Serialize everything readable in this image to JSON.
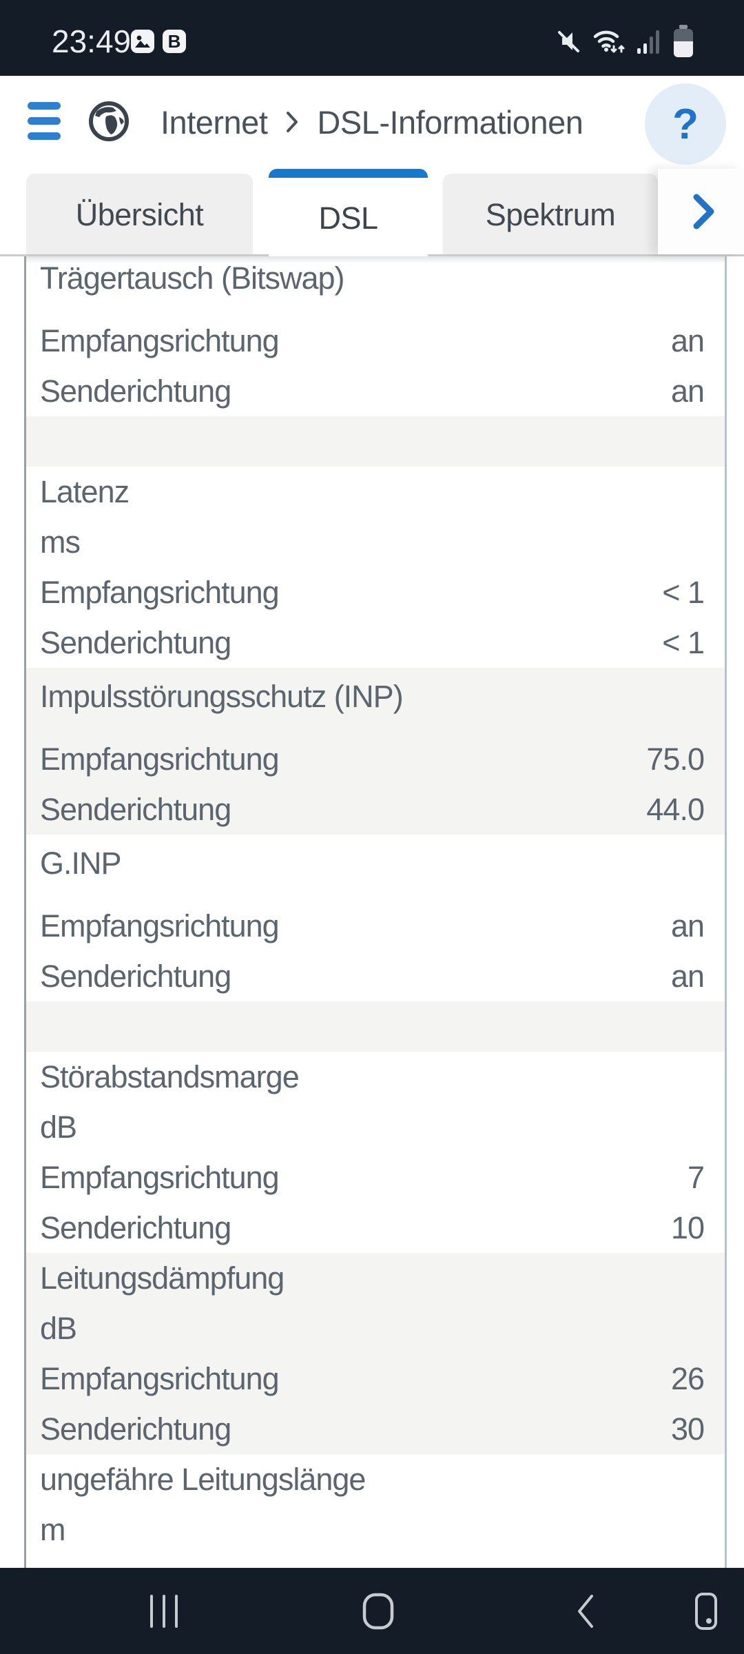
{
  "status_bar": {
    "time": "23:49",
    "badge_letter": "B",
    "icons": [
      "gallery-icon",
      "app-badge-icon",
      "mute-icon",
      "wifi-icon",
      "signal-icon",
      "battery-icon"
    ]
  },
  "header": {
    "breadcrumb": {
      "section": "Internet",
      "page": "DSL-Informationen"
    },
    "help_label": "?"
  },
  "tabs": {
    "items": [
      {
        "label": "Übersicht",
        "active": false
      },
      {
        "label": "DSL",
        "active": true
      },
      {
        "label": "Spektrum",
        "active": false
      }
    ]
  },
  "content": {
    "sections": [
      {
        "bg": "white",
        "rows": [
          {
            "type": "title-tall",
            "label": "Trägertausch (Bitswap)"
          },
          {
            "type": "row",
            "label": "Empfangsrichtung",
            "value": "an"
          },
          {
            "type": "row",
            "label": "Senderichtung",
            "value": "an"
          }
        ]
      },
      {
        "bg": "gray",
        "rows": [
          {
            "type": "spacer"
          }
        ]
      },
      {
        "bg": "white",
        "rows": [
          {
            "type": "title",
            "label": "Latenz"
          },
          {
            "type": "unit",
            "label": "ms"
          },
          {
            "type": "row",
            "label": "Empfangsrichtung",
            "value": "< 1"
          },
          {
            "type": "row",
            "label": "Senderichtung",
            "value": "< 1"
          }
        ]
      },
      {
        "bg": "gray",
        "rows": [
          {
            "type": "title-tall",
            "label": "Impulsstörungsschutz (INP)"
          },
          {
            "type": "row",
            "label": "Empfangsrichtung",
            "value": "75.0"
          },
          {
            "type": "row",
            "label": "Senderichtung",
            "value": "44.0"
          }
        ]
      },
      {
        "bg": "white",
        "rows": [
          {
            "type": "title-tall",
            "label": "G.INP"
          },
          {
            "type": "row",
            "label": "Empfangsrichtung",
            "value": "an"
          },
          {
            "type": "row",
            "label": "Senderichtung",
            "value": "an"
          }
        ]
      },
      {
        "bg": "gray",
        "rows": [
          {
            "type": "spacer"
          }
        ]
      },
      {
        "bg": "white",
        "rows": [
          {
            "type": "title",
            "label": "Störabstandsmarge"
          },
          {
            "type": "unit",
            "label": "dB"
          },
          {
            "type": "row",
            "label": "Empfangsrichtung",
            "value": "7"
          },
          {
            "type": "row",
            "label": "Senderichtung",
            "value": "10"
          }
        ]
      },
      {
        "bg": "gray",
        "rows": [
          {
            "type": "title",
            "label": "Leitungsdämpfung"
          },
          {
            "type": "unit",
            "label": "dB"
          },
          {
            "type": "row",
            "label": "Empfangsrichtung",
            "value": "26"
          },
          {
            "type": "row",
            "label": "Senderichtung",
            "value": "30"
          }
        ]
      },
      {
        "bg": "white",
        "rows": [
          {
            "type": "title",
            "label": "ungefähre Leitungslänge"
          },
          {
            "type": "unit",
            "label": "m"
          }
        ]
      }
    ]
  },
  "colors": {
    "accent_blue": "#1f78cc",
    "dark_bar": "#141d27",
    "row_text": "#5c656e",
    "gray_band": "#f4f4f2",
    "tab_inactive": "#efefef",
    "help_circle": "#e3edf8"
  }
}
